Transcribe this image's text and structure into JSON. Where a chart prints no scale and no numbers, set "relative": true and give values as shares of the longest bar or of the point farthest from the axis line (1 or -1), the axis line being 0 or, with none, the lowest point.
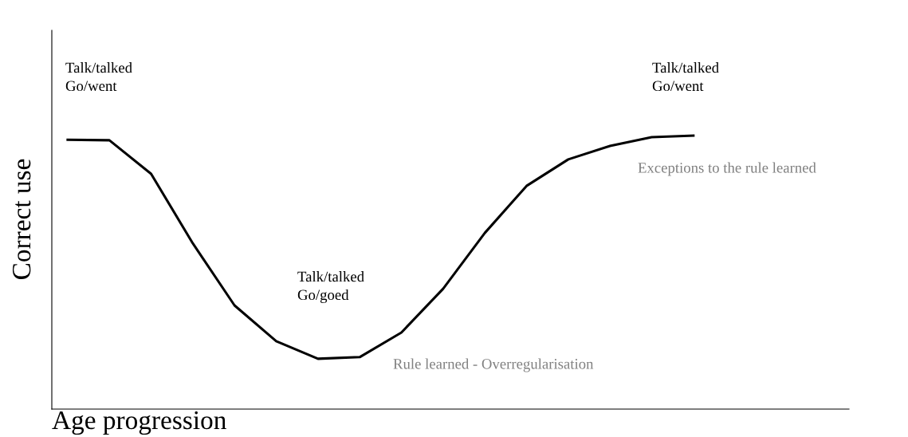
{
  "chart_data": {
    "type": "line",
    "relative": true,
    "xlabel": "Age progression",
    "ylabel": "Correct use",
    "categories": [
      null,
      null,
      null,
      null,
      null,
      null,
      null,
      null,
      null,
      null,
      null,
      null,
      null,
      null,
      null,
      null
    ],
    "series": [
      {
        "color": "#000000",
        "values": [
          0.985,
          0.983,
          0.86,
          0.606,
          0.379,
          0.248,
          0.184,
          0.19,
          0.28,
          0.44,
          0.644,
          0.816,
          0.913,
          0.962,
          0.994,
          1.0
        ]
      }
    ],
    "annotations": [
      "Talk/talked\nGo/went",
      "Talk/talked\nGo/goed",
      "Talk/talked\nGo/went",
      "Exceptions to the rule learned",
      "Rule learned - Overregularisation"
    ],
    "marker": "none",
    "line_style": "solid",
    "grid": false,
    "legend": false
  }
}
